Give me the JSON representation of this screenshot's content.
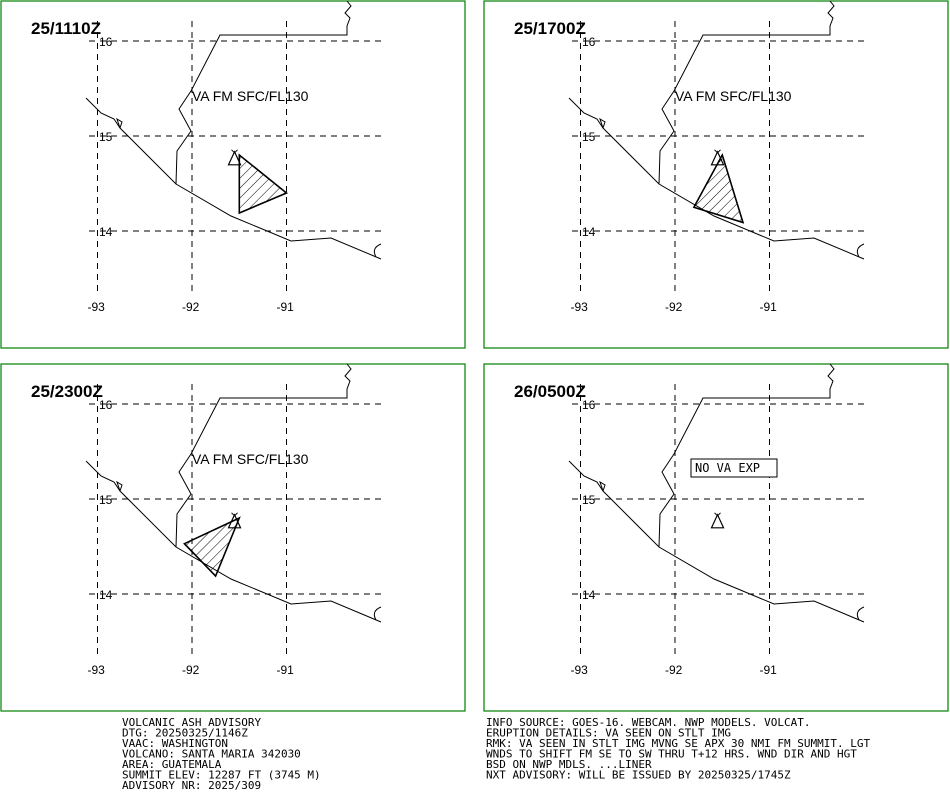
{
  "panels": [
    {
      "time": "25/1110Z",
      "label": "VA FM SFC/FL130",
      "ash_polygon": [
        [
          -91.5,
          14.8
        ],
        [
          -91.5,
          14.19
        ],
        [
          -91.0,
          14.4
        ]
      ]
    },
    {
      "time": "25/1700Z",
      "label": "VA FM SFC/FL130",
      "ash_polygon": [
        [
          -91.5,
          14.8
        ],
        [
          -91.8,
          14.25
        ],
        [
          -91.28,
          14.09
        ]
      ]
    },
    {
      "time": "25/2300Z",
      "label": "VA FM SFC/FL130",
      "ash_polygon": [
        [
          -91.5,
          14.8
        ],
        [
          -92.08,
          14.53
        ],
        [
          -91.75,
          14.19
        ]
      ]
    },
    {
      "time": "26/0500Z",
      "label": "NO VA EXP",
      "ash_polygon": []
    }
  ],
  "grid": {
    "lon_ticks": [
      "-93",
      "-92",
      "-91"
    ],
    "lat_ticks": [
      "16",
      "15",
      "14"
    ]
  },
  "volcano": {
    "name": "SANTA MARIA",
    "lon": -91.55,
    "lat": 14.76
  },
  "advisory_left": [
    "VOLCANIC ASH ADVISORY",
    "DTG: 20250325/1146Z",
    "VAAC: WASHINGTON",
    "VOLCANO: SANTA MARIA 342030",
    "AREA: GUATEMALA",
    "SUMMIT ELEV: 12287 FT (3745 M)",
    "ADVISORY NR: 2025/309"
  ],
  "advisory_right": [
    "INFO SOURCE: GOES-16. WEBCAM. NWP MODELS. VOLCAT.",
    "ERUPTION DETAILS: VA SEEN ON STLT IMG",
    "RMK: VA SEEN IN STLT IMG MVNG SE APX 30 NMI FM SUMMIT. LGT",
    "WNDS TO SHIFT FM SE TO SW THRU T+12 HRS. WND DIR AND HGT",
    "BSD ON NWP MDLS. ...LINER",
    "NXT ADVISORY: WILL BE ISSUED BY 20250325/1745Z"
  ],
  "colors": {
    "frame": "#008000",
    "lines": "#000000",
    "background": "#ffffff"
  }
}
